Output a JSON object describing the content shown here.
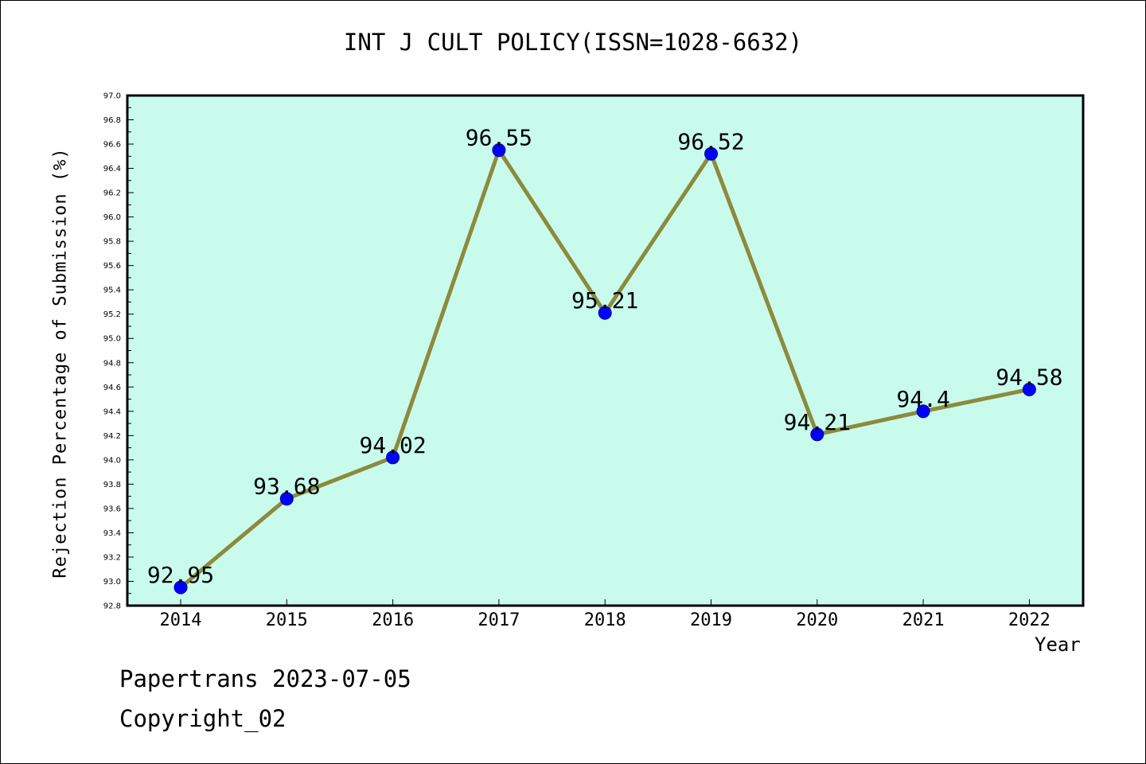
{
  "chart_data": {
    "type": "line",
    "title": "INT J CULT POLICY(ISSN=1028-6632)",
    "xlabel": "Year",
    "ylabel": "Rejection Percentage of Submission (%)",
    "categories": [
      "2014",
      "2015",
      "2016",
      "2017",
      "2018",
      "2019",
      "2020",
      "2021",
      "2022"
    ],
    "values": [
      92.95,
      93.68,
      94.02,
      96.55,
      95.21,
      96.52,
      94.21,
      94.4,
      94.58
    ],
    "data_labels": [
      "92.95",
      "93.68",
      "94.02",
      "96.55",
      "95.21",
      "96.52",
      "94.21",
      "94.4",
      "94.58"
    ],
    "ylim": [
      92.8,
      97.0
    ],
    "yticks": [
      "92.8",
      "93.0",
      "93.2",
      "93.4",
      "93.6",
      "93.8",
      "94.0",
      "94.2",
      "94.4",
      "94.6",
      "94.8",
      "95.0",
      "95.2",
      "95.4",
      "95.6",
      "95.8",
      "96.0",
      "96.2",
      "96.4",
      "96.6",
      "96.8",
      "97.0"
    ],
    "grid": false,
    "colors": {
      "plot_background": "#c8fbec",
      "line": "#8c8a3c",
      "marker": "#0000ff"
    }
  },
  "footer": {
    "line1": "Papertrans 2023-07-05",
    "line2": "Copyright_02"
  }
}
